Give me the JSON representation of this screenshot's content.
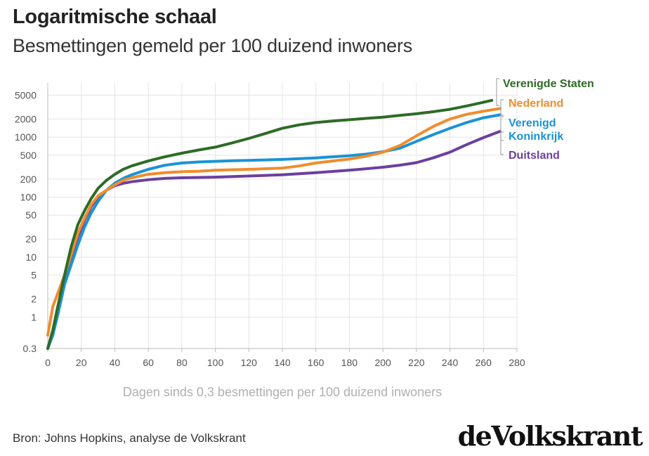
{
  "title": "Logaritmische schaal",
  "subtitle": "Besmettingen gemeld per 100 duizend inwoners",
  "source": "Bron: Johns Hopkins, analyse de Volkskrant",
  "logo": "deVolkskrant",
  "chart_data": {
    "type": "line",
    "xlabel": "Dagen sinds 0,3 besmettingen per 100 duizend inwoners",
    "ylabel": "",
    "yscale": "log",
    "xlim": [
      0,
      280
    ],
    "ylim": [
      0.3,
      8000
    ],
    "x_ticks": [
      0,
      20,
      40,
      60,
      80,
      100,
      120,
      140,
      160,
      180,
      200,
      220,
      240,
      260,
      280
    ],
    "y_ticks": [
      0.3,
      1,
      2,
      5,
      10,
      20,
      50,
      100,
      200,
      500,
      1000,
      2000,
      5000
    ],
    "y_tick_labels": [
      "0.3",
      "1",
      "2",
      "5",
      "10",
      "20",
      "50",
      "100",
      "200",
      "500",
      "1000",
      "2000",
      "5000"
    ],
    "grid": true,
    "legend": "right-end labels",
    "series": [
      {
        "name": "Verenigde Staten",
        "label_lines": [
          "Verenigde Staten"
        ],
        "color": "#2e6b26",
        "points": [
          [
            0,
            0.3
          ],
          [
            3,
            0.6
          ],
          [
            6,
            1.5
          ],
          [
            10,
            5
          ],
          [
            14,
            15
          ],
          [
            18,
            35
          ],
          [
            22,
            60
          ],
          [
            26,
            95
          ],
          [
            30,
            140
          ],
          [
            35,
            190
          ],
          [
            40,
            240
          ],
          [
            45,
            290
          ],
          [
            50,
            330
          ],
          [
            60,
            400
          ],
          [
            70,
            470
          ],
          [
            80,
            540
          ],
          [
            90,
            610
          ],
          [
            100,
            680
          ],
          [
            110,
            800
          ],
          [
            120,
            950
          ],
          [
            130,
            1150
          ],
          [
            140,
            1400
          ],
          [
            150,
            1600
          ],
          [
            160,
            1750
          ],
          [
            170,
            1850
          ],
          [
            180,
            1950
          ],
          [
            190,
            2050
          ],
          [
            200,
            2150
          ],
          [
            210,
            2300
          ],
          [
            220,
            2450
          ],
          [
            230,
            2650
          ],
          [
            240,
            2900
          ],
          [
            250,
            3300
          ],
          [
            260,
            3800
          ],
          [
            265,
            4100
          ]
        ]
      },
      {
        "name": "Nederland",
        "label_lines": [
          "Nederland"
        ],
        "color": "#f08c2c",
        "points": [
          [
            0,
            0.5
          ],
          [
            3,
            1.5
          ],
          [
            6,
            2.5
          ],
          [
            10,
            5
          ],
          [
            14,
            11
          ],
          [
            18,
            25
          ],
          [
            22,
            45
          ],
          [
            26,
            75
          ],
          [
            30,
            105
          ],
          [
            35,
            130
          ],
          [
            40,
            160
          ],
          [
            45,
            190
          ],
          [
            50,
            210
          ],
          [
            60,
            240
          ],
          [
            70,
            255
          ],
          [
            80,
            265
          ],
          [
            90,
            270
          ],
          [
            100,
            280
          ],
          [
            120,
            290
          ],
          [
            140,
            305
          ],
          [
            150,
            330
          ],
          [
            160,
            370
          ],
          [
            170,
            400
          ],
          [
            180,
            430
          ],
          [
            190,
            480
          ],
          [
            200,
            560
          ],
          [
            210,
            720
          ],
          [
            220,
            1050
          ],
          [
            230,
            1500
          ],
          [
            240,
            2000
          ],
          [
            250,
            2400
          ],
          [
            260,
            2700
          ],
          [
            270,
            3000
          ]
        ]
      },
      {
        "name": "Verenigd Koninkrijk",
        "label_lines": [
          "Verenigd",
          "Koninkrijk"
        ],
        "color": "#1a93d6",
        "points": [
          [
            0,
            0.3
          ],
          [
            3,
            0.5
          ],
          [
            6,
            1.1
          ],
          [
            10,
            3.5
          ],
          [
            14,
            7.5
          ],
          [
            18,
            16
          ],
          [
            22,
            32
          ],
          [
            26,
            55
          ],
          [
            30,
            85
          ],
          [
            35,
            130
          ],
          [
            40,
            170
          ],
          [
            45,
            205
          ],
          [
            50,
            235
          ],
          [
            60,
            290
          ],
          [
            70,
            340
          ],
          [
            80,
            370
          ],
          [
            90,
            385
          ],
          [
            100,
            395
          ],
          [
            110,
            405
          ],
          [
            120,
            410
          ],
          [
            140,
            425
          ],
          [
            160,
            450
          ],
          [
            180,
            490
          ],
          [
            190,
            520
          ],
          [
            200,
            570
          ],
          [
            210,
            650
          ],
          [
            220,
            850
          ],
          [
            230,
            1100
          ],
          [
            240,
            1400
          ],
          [
            250,
            1750
          ],
          [
            260,
            2100
          ],
          [
            270,
            2350
          ]
        ]
      },
      {
        "name": "Duitsland",
        "label_lines": [
          "Duitsland"
        ],
        "color": "#6b3fa0",
        "points": [
          [
            0,
            0.3
          ],
          [
            3,
            0.6
          ],
          [
            6,
            1.5
          ],
          [
            10,
            4
          ],
          [
            14,
            10
          ],
          [
            18,
            22
          ],
          [
            22,
            42
          ],
          [
            26,
            70
          ],
          [
            30,
            100
          ],
          [
            35,
            130
          ],
          [
            40,
            155
          ],
          [
            45,
            170
          ],
          [
            50,
            180
          ],
          [
            60,
            195
          ],
          [
            70,
            205
          ],
          [
            80,
            210
          ],
          [
            100,
            215
          ],
          [
            120,
            225
          ],
          [
            140,
            235
          ],
          [
            160,
            255
          ],
          [
            180,
            280
          ],
          [
            200,
            315
          ],
          [
            210,
            340
          ],
          [
            220,
            375
          ],
          [
            230,
            450
          ],
          [
            240,
            560
          ],
          [
            250,
            750
          ],
          [
            260,
            980
          ],
          [
            270,
            1250
          ]
        ]
      }
    ]
  }
}
